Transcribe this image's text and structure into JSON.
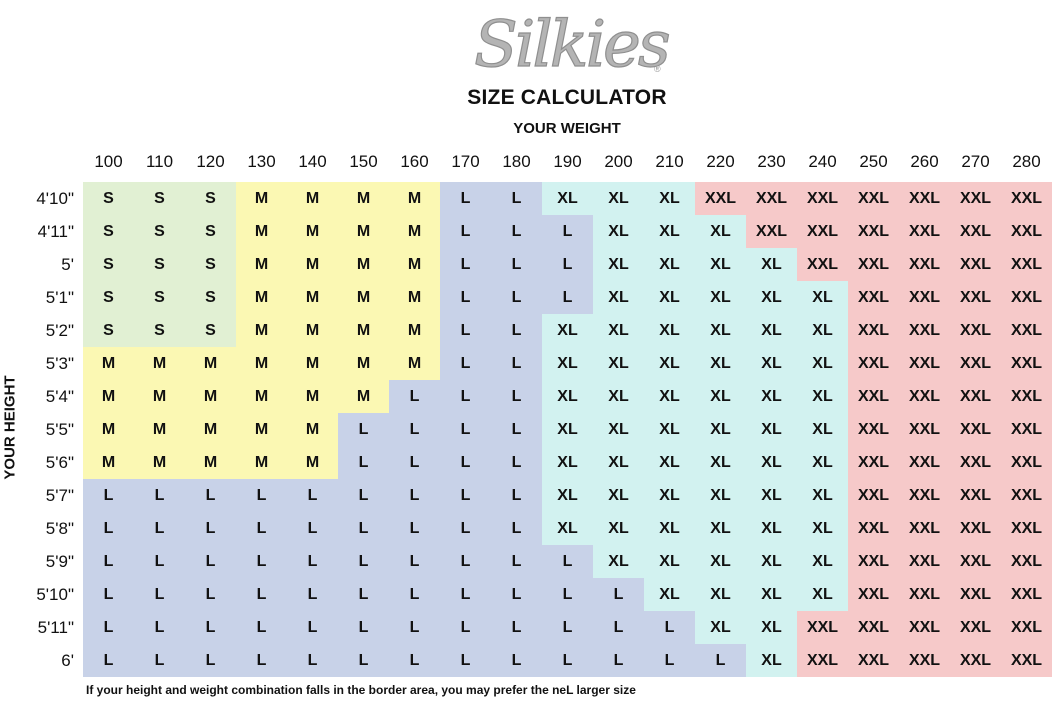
{
  "brand": {
    "name": "Silkies",
    "registered_mark": "®"
  },
  "chart_data": {
    "type": "table",
    "title": "SIZE CALCULATOR",
    "xlabel": "YOUR WEIGHT",
    "ylabel": "YOUR HEIGHT",
    "weights": [
      "100",
      "110",
      "120",
      "130",
      "140",
      "150",
      "160",
      "170",
      "180",
      "190",
      "200",
      "210",
      "220",
      "230",
      "240",
      "250",
      "260",
      "270",
      "280"
    ],
    "heights": [
      "4'10\"",
      "4'11\"",
      "5'",
      "5'1\"",
      "5'2\"",
      "5'3\"",
      "5'4\"",
      "5'5\"",
      "5'6\"",
      "5'7\"",
      "5'8\"",
      "5'9\"",
      "5'10\"",
      "5'11\"",
      "6'"
    ],
    "sizes": [
      [
        "S",
        "S",
        "S",
        "M",
        "M",
        "M",
        "M",
        "L",
        "L",
        "XL",
        "XL",
        "XL",
        "XXL",
        "XXL",
        "XXL",
        "XXL",
        "XXL",
        "XXL",
        "XXL"
      ],
      [
        "S",
        "S",
        "S",
        "M",
        "M",
        "M",
        "M",
        "L",
        "L",
        "L",
        "XL",
        "XL",
        "XL",
        "XXL",
        "XXL",
        "XXL",
        "XXL",
        "XXL",
        "XXL"
      ],
      [
        "S",
        "S",
        "S",
        "M",
        "M",
        "M",
        "M",
        "L",
        "L",
        "L",
        "XL",
        "XL",
        "XL",
        "XL",
        "XXL",
        "XXL",
        "XXL",
        "XXL",
        "XXL"
      ],
      [
        "S",
        "S",
        "S",
        "M",
        "M",
        "M",
        "M",
        "L",
        "L",
        "L",
        "XL",
        "XL",
        "XL",
        "XL",
        "XL",
        "XXL",
        "XXL",
        "XXL",
        "XXL"
      ],
      [
        "S",
        "S",
        "S",
        "M",
        "M",
        "M",
        "M",
        "L",
        "L",
        "XL",
        "XL",
        "XL",
        "XL",
        "XL",
        "XL",
        "XXL",
        "XXL",
        "XXL",
        "XXL"
      ],
      [
        "M",
        "M",
        "M",
        "M",
        "M",
        "M",
        "M",
        "L",
        "L",
        "XL",
        "XL",
        "XL",
        "XL",
        "XL",
        "XL",
        "XXL",
        "XXL",
        "XXL",
        "XXL"
      ],
      [
        "M",
        "M",
        "M",
        "M",
        "M",
        "M",
        "L",
        "L",
        "L",
        "XL",
        "XL",
        "XL",
        "XL",
        "XL",
        "XL",
        "XXL",
        "XXL",
        "XXL",
        "XXL"
      ],
      [
        "M",
        "M",
        "M",
        "M",
        "M",
        "L",
        "L",
        "L",
        "L",
        "XL",
        "XL",
        "XL",
        "XL",
        "XL",
        "XL",
        "XXL",
        "XXL",
        "XXL",
        "XXL"
      ],
      [
        "M",
        "M",
        "M",
        "M",
        "M",
        "L",
        "L",
        "L",
        "L",
        "XL",
        "XL",
        "XL",
        "XL",
        "XL",
        "XL",
        "XXL",
        "XXL",
        "XXL",
        "XXL"
      ],
      [
        "L",
        "L",
        "L",
        "L",
        "L",
        "L",
        "L",
        "L",
        "L",
        "XL",
        "XL",
        "XL",
        "XL",
        "XL",
        "XL",
        "XXL",
        "XXL",
        "XXL",
        "XXL"
      ],
      [
        "L",
        "L",
        "L",
        "L",
        "L",
        "L",
        "L",
        "L",
        "L",
        "XL",
        "XL",
        "XL",
        "XL",
        "XL",
        "XL",
        "XXL",
        "XXL",
        "XXL",
        "XXL"
      ],
      [
        "L",
        "L",
        "L",
        "L",
        "L",
        "L",
        "L",
        "L",
        "L",
        "L",
        "XL",
        "XL",
        "XL",
        "XL",
        "XL",
        "XXL",
        "XXL",
        "XXL",
        "XXL"
      ],
      [
        "L",
        "L",
        "L",
        "L",
        "L",
        "L",
        "L",
        "L",
        "L",
        "L",
        "L",
        "XL",
        "XL",
        "XL",
        "XL",
        "XXL",
        "XXL",
        "XXL",
        "XXL"
      ],
      [
        "L",
        "L",
        "L",
        "L",
        "L",
        "L",
        "L",
        "L",
        "L",
        "L",
        "L",
        "L",
        "XL",
        "XL",
        "XXL",
        "XXL",
        "XXL",
        "XXL",
        "XXL"
      ],
      [
        "L",
        "L",
        "L",
        "L",
        "L",
        "L",
        "L",
        "L",
        "L",
        "L",
        "L",
        "L",
        "L",
        "XL",
        "XXL",
        "XXL",
        "XXL",
        "XXL",
        "XXL"
      ]
    ],
    "size_colors": {
      "S": "#e1f0d3",
      "M": "#fbf8b3",
      "L": "#c8d2e8",
      "XL": "#d2f2f0",
      "XXL": "#f6c9c9"
    },
    "note": "If your height and weight combination falls in the border area, you may prefer the neL larger size"
  }
}
